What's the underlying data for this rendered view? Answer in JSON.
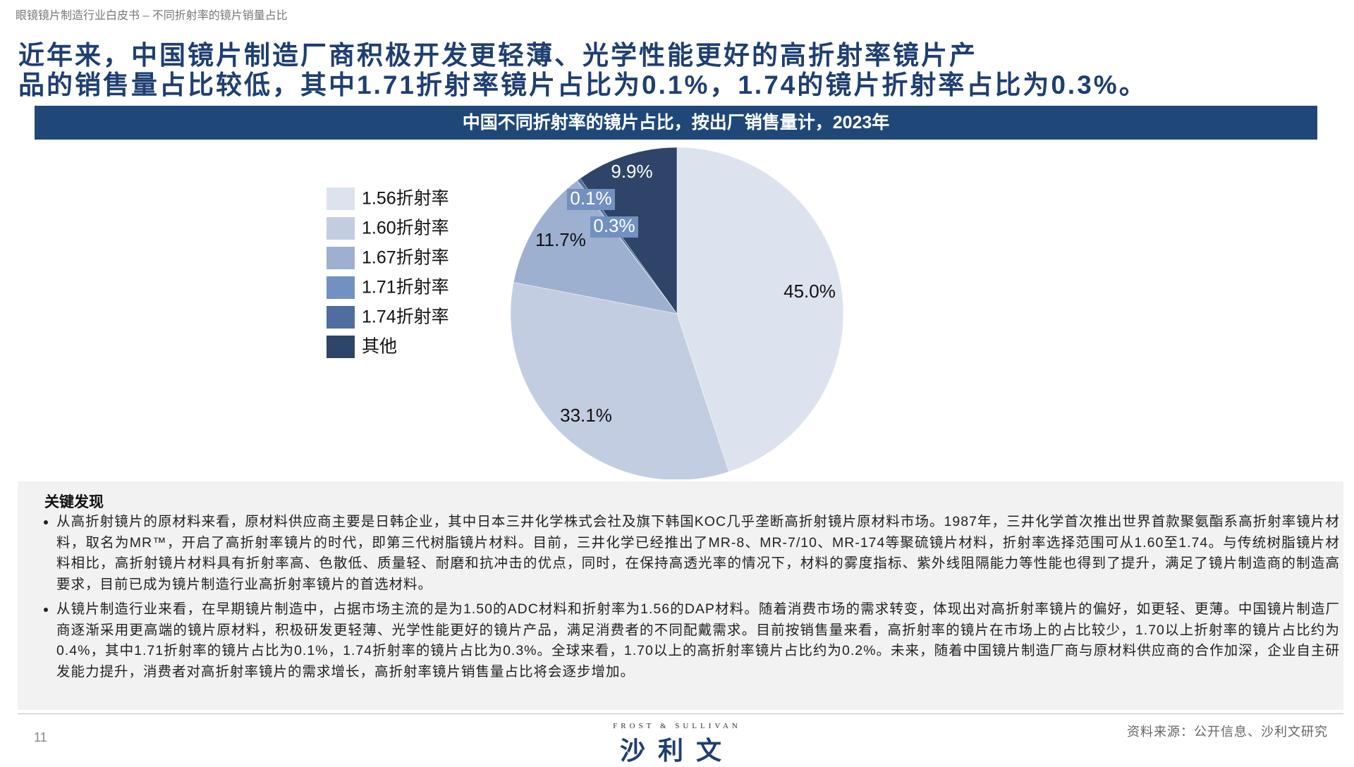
{
  "header": {
    "subtitle": "眼镜镜片制造行业白皮书 – 不同折射率的镜片销量占比",
    "headline": [
      "近年来，中国镜片制造厂商积极开发更轻薄、光学性能更好的高折射率镜片产",
      "品的销售量占比较低，其中1.71折射率镜片占比为0.1%，1.74的镜片折射率占比为0.3%。"
    ]
  },
  "chart_data": {
    "type": "pie",
    "title": "中国不同折射率的镜片占比，按出厂销售量计，2023年",
    "categories": [
      "1.56折射率",
      "1.60折射率",
      "1.67折射率",
      "1.71折射率",
      "1.74折射率",
      "其他"
    ],
    "values": [
      45.0,
      33.1,
      11.7,
      0.1,
      0.3,
      9.9
    ],
    "value_labels": [
      "45.0%",
      "33.1%",
      "11.7%",
      "0.1%",
      "0.3%",
      "9.9%"
    ],
    "colors": [
      "#dde3ee",
      "#c3cde1",
      "#9db0d0",
      "#7290c0",
      "#4f6d9f",
      "#2e4468"
    ],
    "legend": "left"
  },
  "findings": {
    "title": "关键发现",
    "bullets": [
      "从高折射镜片的原材料来看，原材料供应商主要是日韩企业，其中日本三井化学株式会社及旗下韩国KOC几乎垄断高折射镜片原材料市场。1987年，三井化学首次推出世界首款聚氨酯系高折射率镜片材料，取名为MR™，开启了高折射率镜片的时代，即第三代树脂镜片材料。目前，三井化学已经推出了MR-8、MR-7/10、MR-174等聚硫镜片材料，折射率选择范围可从1.60至1.74。与传统树脂镜片材料相比，高折射镜片材料具有折射率高、色散低、质量轻、耐磨和抗冲击的优点，同时，在保持高透光率的情况下，材料的雾度指标、紫外线阻隔能力等性能也得到了提升，满足了镜片制造商的制造高要求，目前已成为镜片制造行业高折射率镜片的首选材料。",
      "从镜片制造行业来看，在早期镜片制造中，占据市场主流的是为1.50的ADC材料和折射率为1.56的DAP材料。随着消费市场的需求转变，体现出对高折射率镜片的偏好，如更轻、更薄。中国镜片制造厂商逐渐采用更高端的镜片原材料，积极研发更轻薄、光学性能更好的镜片产品，满足消费者的不同配戴需求。目前按销售量来看，高折射率的镜片在市场上的占比较少，1.70以上折射率的镜片占比约为0.4%，其中1.71折射率的镜片占比为0.1%，1.74折射率的镜片占比为0.3%。全球来看，1.70以上的高折射率镜片占比约为0.2%。未来，随着中国镜片制造厂商与原材料供应商的合作加深，企业自主研发能力提升，消费者对高折射率镜片的需求增长，高折射率镜片销售量占比将会逐步增加。"
    ]
  },
  "footer": {
    "page": "11",
    "brand_en": "FROST & SULLIVAN",
    "brand_cn": "沙利文",
    "source": "资料来源：公开信息、沙利文研究"
  }
}
